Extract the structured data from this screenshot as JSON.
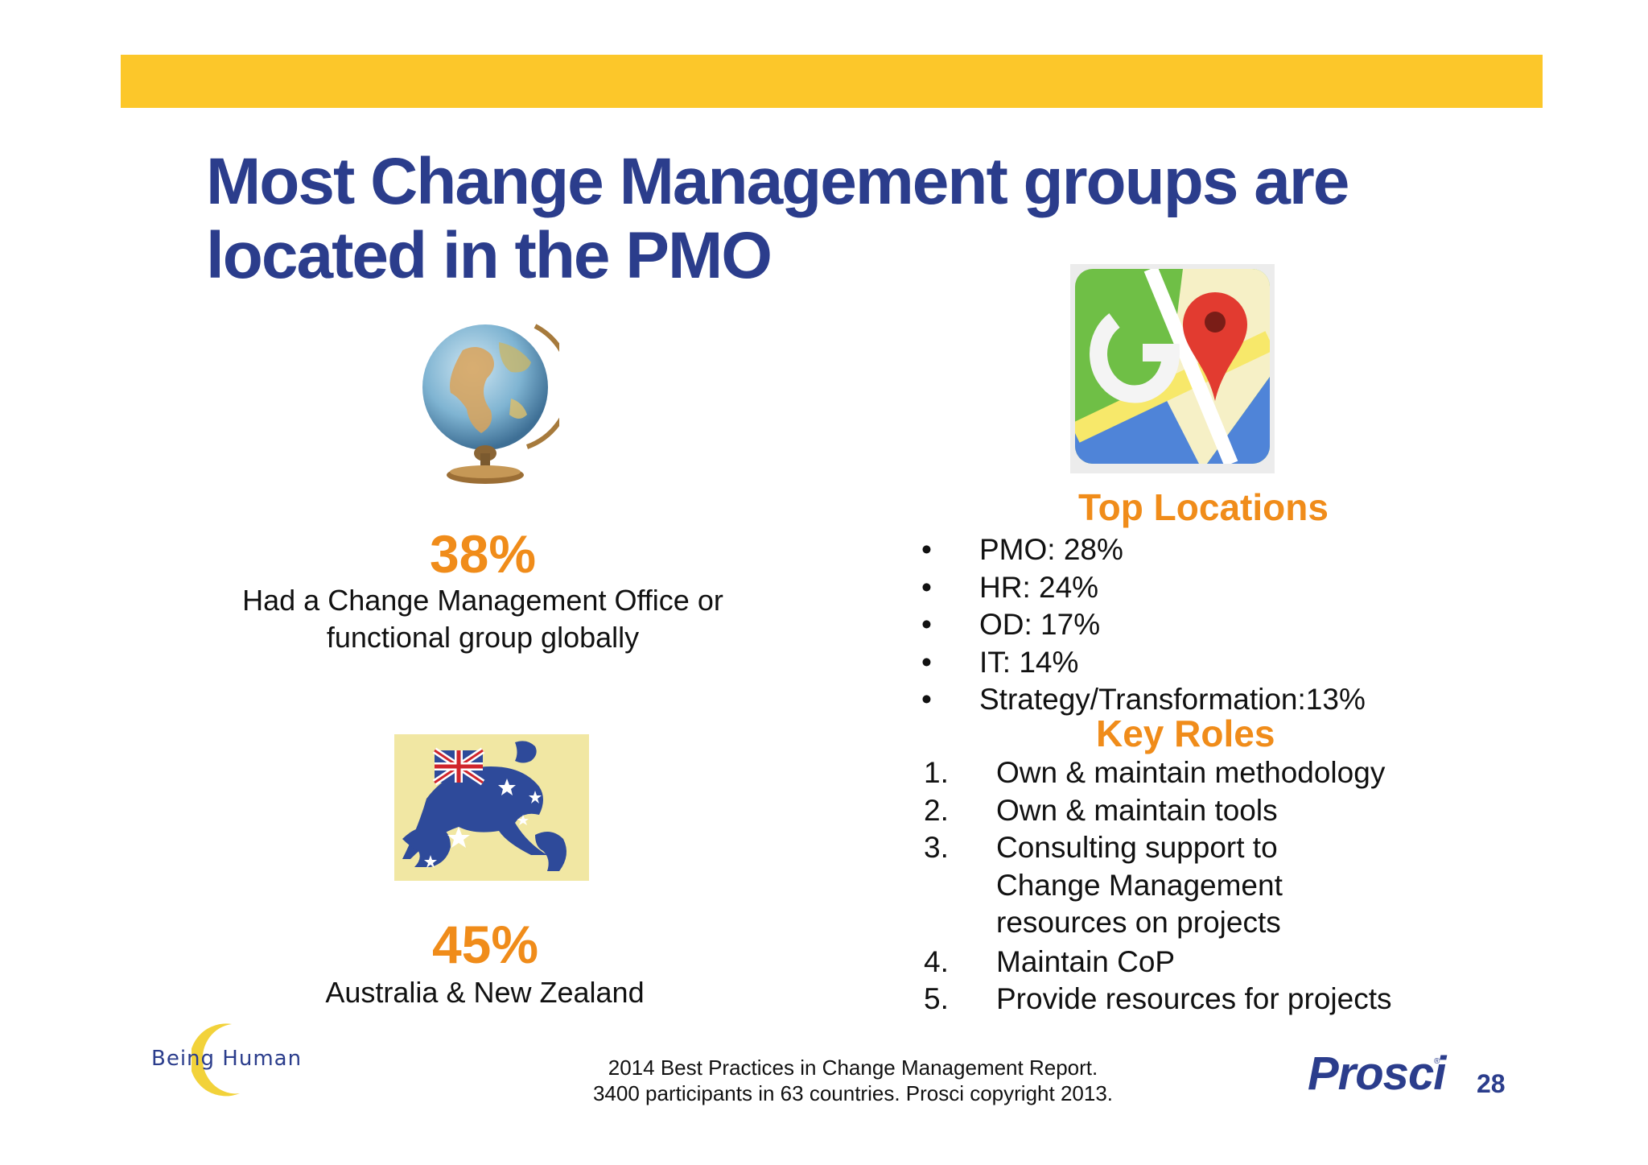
{
  "slide": {
    "title": "Most Change Management groups are located in the PMO"
  },
  "stats": [
    {
      "value": "38%",
      "caption_line1": "Had a Change Management Office or",
      "caption_line2": "functional group globally",
      "icon": "globe-icon"
    },
    {
      "value": "45%",
      "caption_line1": "Australia & New Zealand",
      "icon": "australia-flag-kangaroo-icon"
    }
  ],
  "top_locations": {
    "heading": "Top Locations",
    "bullet": "•",
    "items": [
      "PMO: 28%",
      "HR: 24%",
      "OD: 17%",
      "IT: 14%",
      "Strategy/Transformation:13%"
    ]
  },
  "key_roles": {
    "heading": "Key Roles",
    "items": [
      {
        "num": "1.",
        "text": "Own & maintain methodology"
      },
      {
        "num": "2.",
        "text": "Own & maintain tools"
      },
      {
        "num": "3.",
        "text": "Consulting support to Change Management resources on projects"
      },
      {
        "num": "4.",
        "text": "Maintain CoP"
      },
      {
        "num": "5.",
        "text": "Provide resources for projects"
      }
    ]
  },
  "footer": {
    "line1": "2014 Best Practices in Change Management Report.",
    "line2": "3400 participants in 63 countries.  Prosci copyright 2013.",
    "logo_left": "Being Human",
    "logo_right": "Prosci",
    "logo_right_mark": "®",
    "page_number": "28"
  },
  "colors": {
    "accent_bar": "#fcc72a",
    "title": "#2b3d8c",
    "highlight": "#f08c1a"
  }
}
